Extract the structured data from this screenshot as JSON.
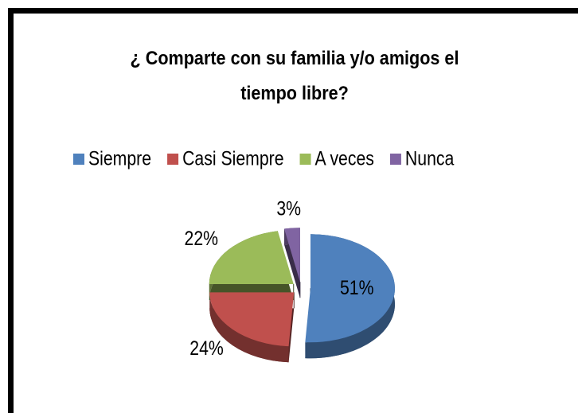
{
  "chart_data": {
    "type": "pie",
    "title": "¿ Comparte con su familia y/o amigos el tiempo libre?",
    "categories": [
      "Siempre",
      "Casi Siempre",
      "A veces",
      "Nunca"
    ],
    "values": [
      51,
      24,
      22,
      3
    ],
    "value_labels": [
      "51%",
      "24%",
      "22%",
      "3%"
    ],
    "colors": [
      "#4f81bd",
      "#c0504d",
      "#9bbb59",
      "#8064a2"
    ],
    "legend": "top"
  }
}
